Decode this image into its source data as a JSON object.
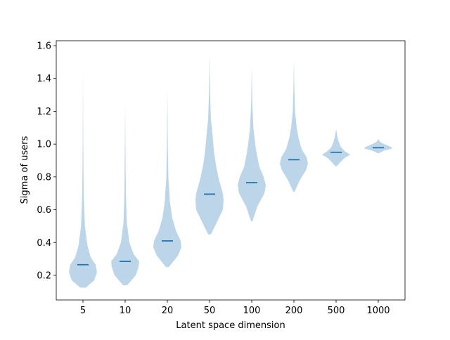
{
  "chart_data": {
    "type": "violin",
    "title": "",
    "xlabel": "Latent space dimension",
    "ylabel": "Sigma of users",
    "ylim": [
      0.05,
      1.63
    ],
    "yticks": [
      0.2,
      0.4,
      0.6,
      0.8,
      1.0,
      1.2,
      1.4,
      1.6
    ],
    "ytick_labels": [
      "0.2",
      "0.4",
      "0.6",
      "0.8",
      "1.0",
      "1.2",
      "1.4",
      "1.6"
    ],
    "categories": [
      "5",
      "10",
      "20",
      "50",
      "100",
      "200",
      "500",
      "1000"
    ],
    "grid": false,
    "legend": "none",
    "colors": {
      "violin_fill": "#bcd5e8",
      "median_line": "#1f77b4"
    },
    "series": [
      {
        "category": "5",
        "median": 0.265,
        "min": 0.125,
        "max": 1.45,
        "profile": [
          [
            0.125,
            0.2
          ],
          [
            0.17,
            0.8
          ],
          [
            0.22,
            1.0
          ],
          [
            0.265,
            0.9
          ],
          [
            0.31,
            0.55
          ],
          [
            0.38,
            0.32
          ],
          [
            0.5,
            0.14
          ],
          [
            0.7,
            0.05
          ],
          [
            1.0,
            0.02
          ],
          [
            1.45,
            0.0
          ]
        ]
      },
      {
        "category": "10",
        "median": 0.285,
        "min": 0.14,
        "max": 1.25,
        "profile": [
          [
            0.14,
            0.15
          ],
          [
            0.2,
            0.75
          ],
          [
            0.25,
            0.95
          ],
          [
            0.285,
            1.0
          ],
          [
            0.33,
            0.6
          ],
          [
            0.4,
            0.3
          ],
          [
            0.52,
            0.12
          ],
          [
            0.7,
            0.05
          ],
          [
            1.0,
            0.02
          ],
          [
            1.25,
            0.0
          ]
        ]
      },
      {
        "category": "20",
        "median": 0.41,
        "min": 0.25,
        "max": 1.35,
        "profile": [
          [
            0.25,
            0.1
          ],
          [
            0.32,
            0.75
          ],
          [
            0.37,
            1.0
          ],
          [
            0.41,
            0.95
          ],
          [
            0.47,
            0.62
          ],
          [
            0.55,
            0.35
          ],
          [
            0.65,
            0.18
          ],
          [
            0.8,
            0.07
          ],
          [
            1.0,
            0.03
          ],
          [
            1.35,
            0.0
          ]
        ]
      },
      {
        "category": "50",
        "median": 0.695,
        "min": 0.45,
        "max": 1.55,
        "profile": [
          [
            0.45,
            0.1
          ],
          [
            0.52,
            0.5
          ],
          [
            0.6,
            0.95
          ],
          [
            0.66,
            1.0
          ],
          [
            0.7,
            0.95
          ],
          [
            0.78,
            0.68
          ],
          [
            0.86,
            0.48
          ],
          [
            0.95,
            0.32
          ],
          [
            1.05,
            0.22
          ],
          [
            1.15,
            0.1
          ],
          [
            1.3,
            0.04
          ],
          [
            1.55,
            0.0
          ]
        ]
      },
      {
        "category": "100",
        "median": 0.765,
        "min": 0.53,
        "max": 1.47,
        "profile": [
          [
            0.53,
            0.05
          ],
          [
            0.62,
            0.4
          ],
          [
            0.7,
            0.9
          ],
          [
            0.75,
            1.0
          ],
          [
            0.8,
            0.85
          ],
          [
            0.86,
            0.55
          ],
          [
            0.93,
            0.38
          ],
          [
            1.0,
            0.25
          ],
          [
            1.1,
            0.12
          ],
          [
            1.25,
            0.04
          ],
          [
            1.47,
            0.0
          ]
        ]
      },
      {
        "category": "200",
        "median": 0.905,
        "min": 0.71,
        "max": 1.52,
        "profile": [
          [
            0.71,
            0.05
          ],
          [
            0.78,
            0.42
          ],
          [
            0.84,
            0.85
          ],
          [
            0.88,
            1.0
          ],
          [
            0.92,
            0.9
          ],
          [
            0.97,
            0.55
          ],
          [
            1.03,
            0.35
          ],
          [
            1.1,
            0.2
          ],
          [
            1.2,
            0.08
          ],
          [
            1.35,
            0.03
          ],
          [
            1.52,
            0.0
          ]
        ]
      },
      {
        "category": "500",
        "median": 0.95,
        "min": 0.865,
        "max": 1.09,
        "profile": [
          [
            0.865,
            0.05
          ],
          [
            0.89,
            0.3
          ],
          [
            0.915,
            0.6
          ],
          [
            0.935,
            1.0
          ],
          [
            0.955,
            0.65
          ],
          [
            0.98,
            0.35
          ],
          [
            1.01,
            0.2
          ],
          [
            1.04,
            0.1
          ],
          [
            1.09,
            0.0
          ]
        ]
      },
      {
        "category": "1000",
        "median": 0.978,
        "min": 0.945,
        "max": 1.03,
        "profile": [
          [
            0.945,
            0.05
          ],
          [
            0.96,
            0.4
          ],
          [
            0.972,
            0.95
          ],
          [
            0.978,
            1.0
          ],
          [
            0.99,
            0.7
          ],
          [
            1.005,
            0.3
          ],
          [
            1.015,
            0.12
          ],
          [
            1.03,
            0.0
          ]
        ]
      }
    ]
  }
}
